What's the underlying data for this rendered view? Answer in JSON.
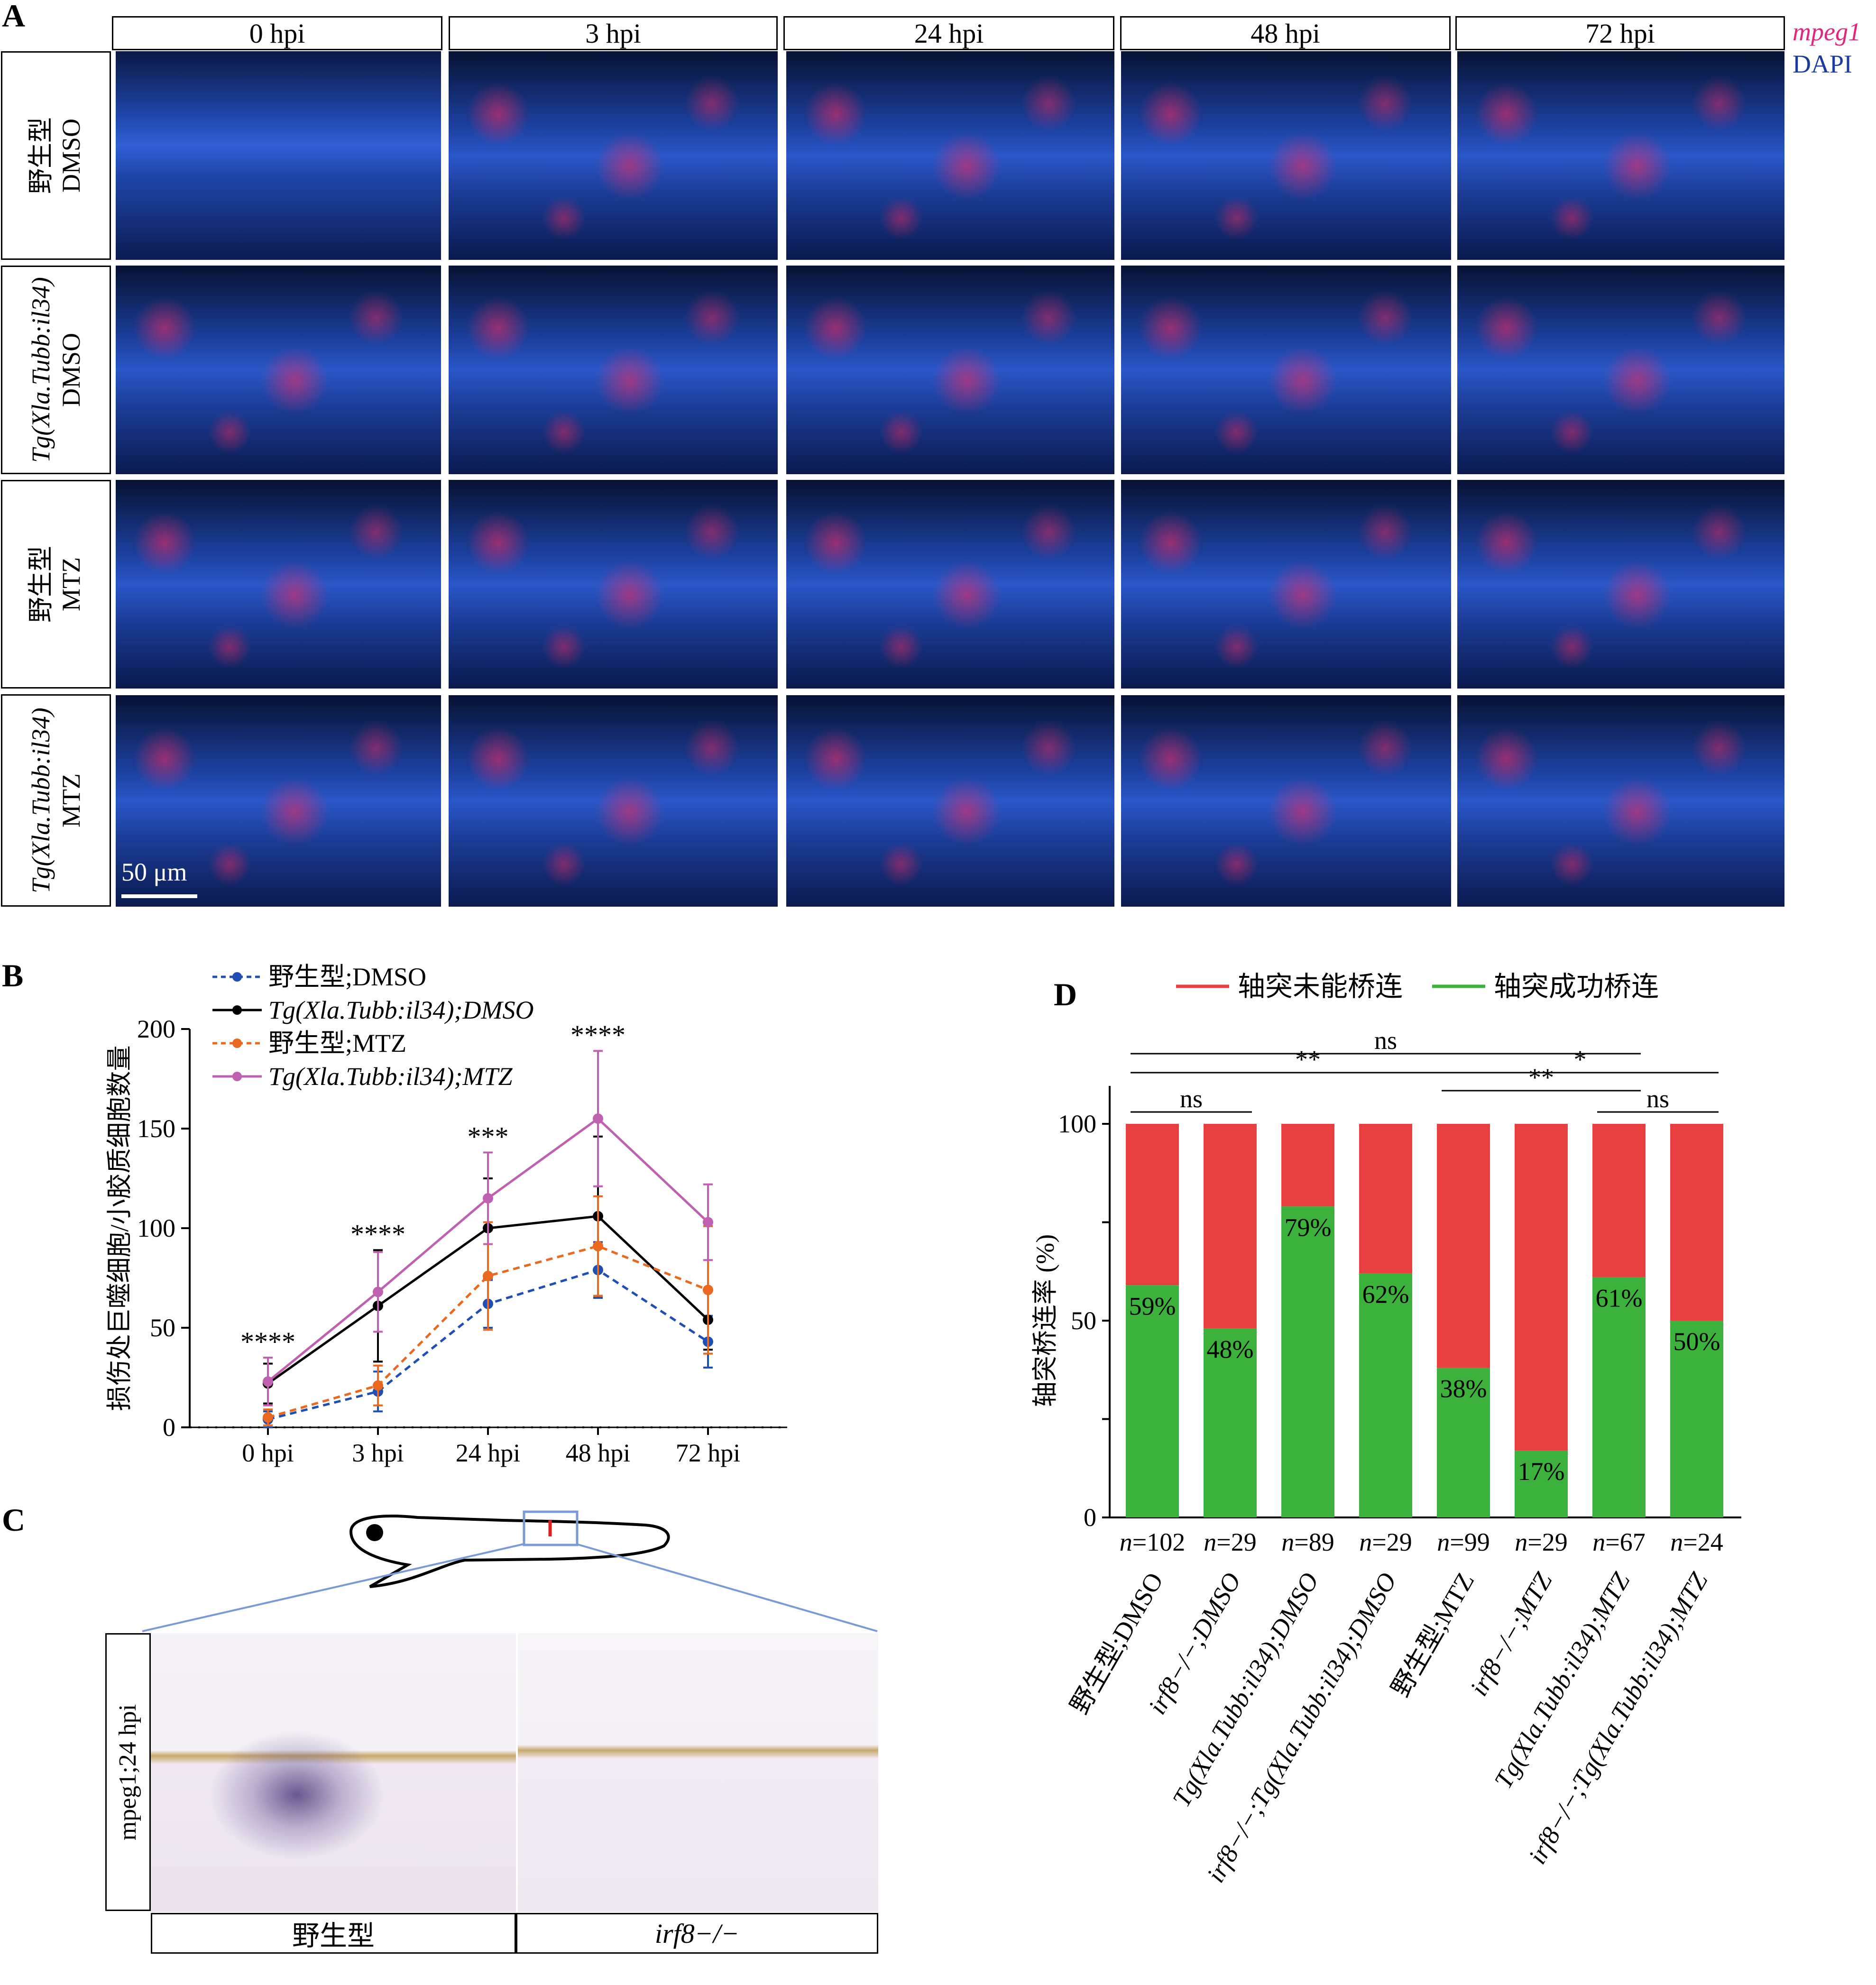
{
  "panels": {
    "A": "A",
    "B": "B",
    "C": "C",
    "D": "D"
  },
  "panelA": {
    "columns": [
      "0 hpi",
      "3 hpi",
      "24 hpi",
      "48 hpi",
      "72 hpi"
    ],
    "rows": [
      {
        "line1": "野生型",
        "line2": "DMSO"
      },
      {
        "line1": "Tg(Xla.Tubb:il34)",
        "line2": "DMSO"
      },
      {
        "line1": "野生型",
        "line2": "MTZ"
      },
      {
        "line1": "Tg(Xla.Tubb:il34)",
        "line2": "MTZ"
      }
    ],
    "stain_legend": {
      "mpeg1": "mpeg1",
      "dapi": "DAPI"
    },
    "scale_bar": "50 μm",
    "colors": {
      "mpeg1": "#e0287a",
      "dapi": "#1a3aa0",
      "signal": "#ff2f5a",
      "nucleus": "#2a56c8"
    }
  },
  "chart_data": [
    {
      "type": "line",
      "panel": "B",
      "ylabel": "损伤处巨噬细胞/小胶质细胞数量",
      "categories": [
        "0 hpi",
        "3 hpi",
        "24 hpi",
        "48 hpi",
        "72 hpi"
      ],
      "ylim": [
        0,
        200
      ],
      "yticks": [
        0,
        50,
        100,
        150,
        200
      ],
      "series": [
        {
          "name": "野生型;DMSO",
          "color": "#1f4fb4",
          "dashed": true,
          "values": [
            4,
            18,
            62,
            79,
            43
          ],
          "err": [
            4,
            10,
            12,
            14,
            13
          ]
        },
        {
          "name": "Tg(Xla.Tubb:il34);DMSO",
          "color": "#000000",
          "dashed": false,
          "values": [
            22,
            61,
            100,
            106,
            54
          ],
          "err": [
            10,
            28,
            25,
            40,
            15
          ]
        },
        {
          "name": "野生型;MTZ",
          "color": "#e8691f",
          "dashed": true,
          "values": [
            5,
            21,
            76,
            91,
            69
          ],
          "err": [
            4,
            10,
            27,
            25,
            32
          ]
        },
        {
          "name": "Tg(Xla.Tubb:il34);MTZ",
          "color": "#c060b0",
          "dashed": false,
          "values": [
            23,
            68,
            115,
            155,
            103
          ],
          "err": [
            12,
            20,
            23,
            34,
            19
          ]
        }
      ],
      "significance": [
        "****",
        "****",
        "***",
        "****",
        ""
      ]
    },
    {
      "type": "bar",
      "panel": "D",
      "ylabel": "轴突桥连率 (%)",
      "categories": [
        "野生型;DMSO",
        "irf8−/−;DMSO",
        "Tg(Xla.Tubb:il34);DMSO",
        "irf8−/−;Tg(Xla.Tubb:il34);DMSO",
        "野生型;MTZ",
        "irf8−/−;MTZ",
        "Tg(Xla.Tubb:il34);MTZ",
        "irf8−/−;Tg(Xla.Tubb:il34);MTZ"
      ],
      "n_labels": [
        "n=102",
        "n=29",
        "n=89",
        "n=29",
        "n=99",
        "n=29",
        "n=67",
        "n=24"
      ],
      "ylim": [
        0,
        100
      ],
      "yticks": [
        0,
        50,
        100
      ],
      "series": [
        {
          "name": "轴突成功桥连",
          "color": "#3cb23c",
          "values": [
            59,
            48,
            79,
            62,
            38,
            17,
            61,
            50
          ]
        },
        {
          "name": "轴突未能桥连",
          "color": "#e84040",
          "values": [
            41,
            52,
            21,
            38,
            62,
            83,
            39,
            50
          ]
        }
      ],
      "value_labels": [
        "59%",
        "48%",
        "79%",
        "62%",
        "38%",
        "17%",
        "61%",
        "50%"
      ],
      "comparisons": [
        {
          "from": 0,
          "to": 6,
          "label": "ns"
        },
        {
          "from": 0,
          "to": 4,
          "label": "**"
        },
        {
          "from": 4,
          "to": 7,
          "label": "*"
        },
        {
          "from": 0,
          "to": 1,
          "label": "ns"
        },
        {
          "from": 4,
          "to": 6,
          "label": "**"
        },
        {
          "from": 6,
          "to": 7,
          "label": "ns"
        }
      ]
    }
  ],
  "panelC": {
    "side_label": "mpeg1;24 hpi",
    "columns": [
      "野生型",
      "irf8−/−"
    ]
  }
}
